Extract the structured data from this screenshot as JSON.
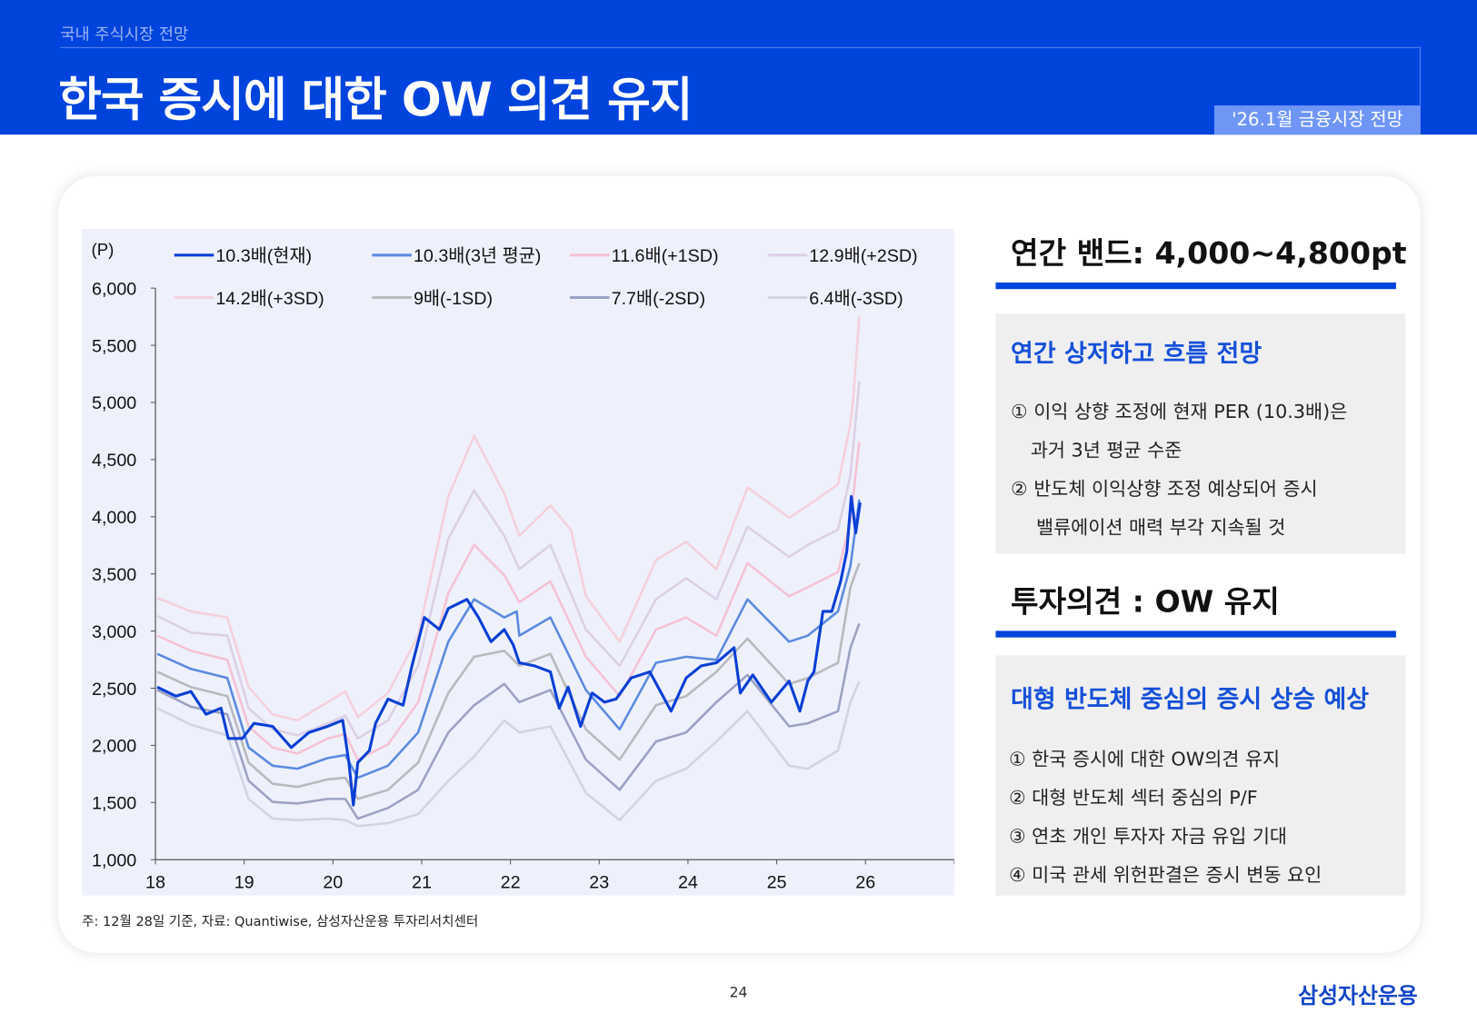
{
  "header": {
    "section": "국내 주식시장 전망",
    "title": "한국 증시에 대한 OW 의견 유지",
    "tag": "'26.1월 금융시장 전망"
  },
  "chart_data": {
    "type": "line",
    "unit_label": "(P)",
    "xlim": [
      18,
      27
    ],
    "ylim": [
      1000,
      6000
    ],
    "x_ticks": [
      "18",
      "19",
      "20",
      "21",
      "22",
      "23",
      "24",
      "25",
      "26"
    ],
    "y_ticks": [
      "1,000",
      "1,500",
      "2,000",
      "2,500",
      "3,000",
      "3,500",
      "4,000",
      "4,500",
      "5,000",
      "5,500",
      "6,000"
    ],
    "legend_position": "top",
    "grid": false,
    "series": [
      {
        "name": "10.3배(현재)",
        "color": "#0a3fd6",
        "width": 3,
        "points": [
          [
            18.02,
            2510
          ],
          [
            18.23,
            2431
          ],
          [
            18.4,
            2471
          ],
          [
            18.57,
            2272
          ],
          [
            18.74,
            2325
          ],
          [
            18.82,
            2060
          ],
          [
            18.98,
            2060
          ],
          [
            19.11,
            2193
          ],
          [
            19.32,
            2166
          ],
          [
            19.53,
            1981
          ],
          [
            19.73,
            2113
          ],
          [
            19.94,
            2166
          ],
          [
            20.11,
            2219
          ],
          [
            20.18,
            1849
          ],
          [
            20.23,
            1478
          ],
          [
            20.28,
            1849
          ],
          [
            20.41,
            1954
          ],
          [
            20.48,
            2193
          ],
          [
            20.62,
            2405
          ],
          [
            20.79,
            2352
          ],
          [
            20.89,
            2695
          ],
          [
            21.03,
            3119
          ],
          [
            21.2,
            3013
          ],
          [
            21.3,
            3198
          ],
          [
            21.51,
            3278
          ],
          [
            21.64,
            3119
          ],
          [
            21.78,
            2907
          ],
          [
            21.93,
            3013
          ],
          [
            22.03,
            2881
          ],
          [
            22.1,
            2722
          ],
          [
            22.27,
            2696
          ],
          [
            22.45,
            2643
          ],
          [
            22.55,
            2325
          ],
          [
            22.65,
            2510
          ],
          [
            22.79,
            2166
          ],
          [
            22.92,
            2458
          ],
          [
            23.06,
            2378
          ],
          [
            23.19,
            2405
          ],
          [
            23.36,
            2590
          ],
          [
            23.57,
            2643
          ],
          [
            23.81,
            2299
          ],
          [
            23.98,
            2590
          ],
          [
            24.15,
            2696
          ],
          [
            24.32,
            2722
          ],
          [
            24.52,
            2854
          ],
          [
            24.59,
            2458
          ],
          [
            24.73,
            2616
          ],
          [
            24.94,
            2378
          ],
          [
            25.14,
            2563
          ],
          [
            25.26,
            2299
          ],
          [
            25.35,
            2563
          ],
          [
            25.42,
            2643
          ],
          [
            25.52,
            3172
          ],
          [
            25.62,
            3172
          ],
          [
            25.72,
            3436
          ],
          [
            25.79,
            3701
          ],
          [
            25.84,
            4177
          ],
          [
            25.89,
            3860
          ],
          [
            25.94,
            4124
          ]
        ]
      },
      {
        "name": "10.3배(3년 평균)",
        "color": "#5b8ae0",
        "width": 2.5,
        "points": [
          [
            18.02,
            2801
          ],
          [
            18.4,
            2669
          ],
          [
            18.81,
            2590
          ],
          [
            19.05,
            1981
          ],
          [
            19.32,
            1822
          ],
          [
            19.6,
            1796
          ],
          [
            19.94,
            1889
          ],
          [
            20.14,
            1915
          ],
          [
            20.28,
            1717
          ],
          [
            20.62,
            1822
          ],
          [
            20.96,
            2113
          ],
          [
            21.3,
            2907
          ],
          [
            21.59,
            3278
          ],
          [
            21.93,
            3119
          ],
          [
            22.07,
            3172
          ],
          [
            22.1,
            2960
          ],
          [
            22.45,
            3119
          ],
          [
            22.85,
            2484
          ],
          [
            23.23,
            2140
          ],
          [
            23.64,
            2722
          ],
          [
            23.98,
            2775
          ],
          [
            24.32,
            2748
          ],
          [
            24.67,
            3278
          ],
          [
            25.14,
            2907
          ],
          [
            25.35,
            2960
          ],
          [
            25.69,
            3172
          ],
          [
            25.83,
            3569
          ],
          [
            25.93,
            4151
          ]
        ]
      },
      {
        "name": "11.6배(+1SD)",
        "color": "#f5c2d4",
        "width": 2.5,
        "points": [
          [
            18.02,
            2960
          ],
          [
            18.4,
            2828
          ],
          [
            18.81,
            2748
          ],
          [
            19.05,
            2166
          ],
          [
            19.32,
            1981
          ],
          [
            19.6,
            1928
          ],
          [
            19.94,
            2060
          ],
          [
            20.14,
            2100
          ],
          [
            20.28,
            1875
          ],
          [
            20.62,
            2008
          ],
          [
            20.96,
            2378
          ],
          [
            21.3,
            3331
          ],
          [
            21.59,
            3754
          ],
          [
            21.93,
            3489
          ],
          [
            22.1,
            3251
          ],
          [
            22.45,
            3436
          ],
          [
            22.85,
            2775
          ],
          [
            23.23,
            2431
          ],
          [
            23.64,
            3013
          ],
          [
            23.98,
            3119
          ],
          [
            24.32,
            2960
          ],
          [
            24.67,
            3595
          ],
          [
            25.14,
            3304
          ],
          [
            25.35,
            3383
          ],
          [
            25.69,
            3516
          ],
          [
            25.83,
            3966
          ],
          [
            25.93,
            4654
          ]
        ]
      },
      {
        "name": "12.9배(+2SD)",
        "color": "#dccfe6",
        "width": 2.5,
        "points": [
          [
            18.02,
            3132
          ],
          [
            18.4,
            2987
          ],
          [
            18.81,
            2960
          ],
          [
            19.05,
            2325
          ],
          [
            19.32,
            2140
          ],
          [
            19.6,
            2087
          ],
          [
            19.94,
            2193
          ],
          [
            20.14,
            2259
          ],
          [
            20.28,
            2060
          ],
          [
            20.62,
            2219
          ],
          [
            20.96,
            2695
          ],
          [
            21.3,
            3807
          ],
          [
            21.59,
            4230
          ],
          [
            21.93,
            3833
          ],
          [
            22.1,
            3542
          ],
          [
            22.45,
            3754
          ],
          [
            22.85,
            3013
          ],
          [
            23.23,
            2696
          ],
          [
            23.64,
            3278
          ],
          [
            23.98,
            3463
          ],
          [
            24.32,
            3278
          ],
          [
            24.67,
            3913
          ],
          [
            25.14,
            3648
          ],
          [
            25.35,
            3754
          ],
          [
            25.69,
            3886
          ],
          [
            25.83,
            4362
          ],
          [
            25.93,
            5180
          ]
        ]
      },
      {
        "name": "14.2배(+3SD)",
        "color": "#f5d0da",
        "width": 2.5,
        "points": [
          [
            18.02,
            3291
          ],
          [
            18.4,
            3172
          ],
          [
            18.81,
            3119
          ],
          [
            19.05,
            2510
          ],
          [
            19.32,
            2272
          ],
          [
            19.6,
            2219
          ],
          [
            19.94,
            2378
          ],
          [
            20.14,
            2471
          ],
          [
            20.28,
            2246
          ],
          [
            20.62,
            2458
          ],
          [
            20.96,
            2960
          ],
          [
            21.3,
            4177
          ],
          [
            21.59,
            4707
          ],
          [
            21.93,
            4204
          ],
          [
            22.1,
            3833
          ],
          [
            22.45,
            4098
          ],
          [
            22.68,
            3886
          ],
          [
            22.85,
            3304
          ],
          [
            23.23,
            2907
          ],
          [
            23.64,
            3622
          ],
          [
            23.98,
            3780
          ],
          [
            24.32,
            3542
          ],
          [
            24.67,
            4257
          ],
          [
            25.14,
            3992
          ],
          [
            25.35,
            4098
          ],
          [
            25.69,
            4283
          ],
          [
            25.83,
            4812
          ],
          [
            25.86,
            5024
          ],
          [
            25.93,
            5750
          ]
        ]
      },
      {
        "name": "9배(-1SD)",
        "color": "#b9b9bd",
        "width": 2.5,
        "points": [
          [
            18.02,
            2643
          ],
          [
            18.4,
            2510
          ],
          [
            18.81,
            2431
          ],
          [
            19.05,
            1849
          ],
          [
            19.32,
            1664
          ],
          [
            19.6,
            1637
          ],
          [
            19.94,
            1703
          ],
          [
            20.14,
            1717
          ],
          [
            20.28,
            1531
          ],
          [
            20.62,
            1611
          ],
          [
            20.96,
            1849
          ],
          [
            21.3,
            2458
          ],
          [
            21.59,
            2775
          ],
          [
            21.93,
            2828
          ],
          [
            22.1,
            2696
          ],
          [
            22.45,
            2801
          ],
          [
            22.85,
            2140
          ],
          [
            23.23,
            1875
          ],
          [
            23.64,
            2352
          ],
          [
            23.98,
            2431
          ],
          [
            24.32,
            2643
          ],
          [
            24.67,
            2934
          ],
          [
            25.14,
            2537
          ],
          [
            25.35,
            2590
          ],
          [
            25.69,
            2722
          ],
          [
            25.83,
            3383
          ],
          [
            25.93,
            3595
          ]
        ]
      },
      {
        "name": "7.7배(-2SD)",
        "color": "#9ca2c2",
        "width": 2.5,
        "points": [
          [
            18.02,
            2484
          ],
          [
            18.4,
            2338
          ],
          [
            18.81,
            2272
          ],
          [
            19.05,
            1690
          ],
          [
            19.32,
            1505
          ],
          [
            19.6,
            1492
          ],
          [
            19.94,
            1531
          ],
          [
            20.14,
            1531
          ],
          [
            20.28,
            1359
          ],
          [
            20.62,
            1452
          ],
          [
            20.96,
            1611
          ],
          [
            21.3,
            2113
          ],
          [
            21.59,
            2351
          ],
          [
            21.93,
            2537
          ],
          [
            22.1,
            2378
          ],
          [
            22.45,
            2484
          ],
          [
            22.85,
            1875
          ],
          [
            23.23,
            1611
          ],
          [
            23.64,
            2034
          ],
          [
            23.98,
            2113
          ],
          [
            24.32,
            2378
          ],
          [
            24.67,
            2616
          ],
          [
            25.14,
            2166
          ],
          [
            25.35,
            2193
          ],
          [
            25.69,
            2299
          ],
          [
            25.83,
            2854
          ],
          [
            25.93,
            3066
          ]
        ]
      },
      {
        "name": "6.4배(-3SD)",
        "color": "#d2d4e3",
        "width": 2.5,
        "points": [
          [
            18.02,
            2325
          ],
          [
            18.4,
            2180
          ],
          [
            18.81,
            2087
          ],
          [
            19.05,
            1531
          ],
          [
            19.32,
            1359
          ],
          [
            19.6,
            1346
          ],
          [
            19.94,
            1359
          ],
          [
            20.14,
            1346
          ],
          [
            20.28,
            1293
          ],
          [
            20.62,
            1320
          ],
          [
            20.96,
            1399
          ],
          [
            21.3,
            1690
          ],
          [
            21.59,
            1902
          ],
          [
            21.93,
            2219
          ],
          [
            22.1,
            2113
          ],
          [
            22.45,
            2166
          ],
          [
            22.85,
            1584
          ],
          [
            23.23,
            1346
          ],
          [
            23.64,
            1690
          ],
          [
            23.98,
            1796
          ],
          [
            24.32,
            2034
          ],
          [
            24.67,
            2299
          ],
          [
            25.14,
            1822
          ],
          [
            25.35,
            1796
          ],
          [
            25.69,
            1955
          ],
          [
            25.83,
            2378
          ],
          [
            25.93,
            2563
          ]
        ]
      }
    ]
  },
  "note": "주: 12월 28일 기준, 자료: Quantiwise, 삼성자산운용 투자리서치센터",
  "right": {
    "band_title": "연간 밴드: 4,000~4,800pt",
    "box1": {
      "heading": "연간 상저하고 흐름 전망",
      "items": [
        "① 이익 상향 조정에 현재 PER (10.3배)은",
        "과거 3년 평균 수준",
        "② 반도체 이익상향 조정 예상되어 증시",
        "밸류에이션 매력 부각 지속될 것"
      ]
    },
    "opinion_title": "투자의견 : OW 유지",
    "box2": {
      "heading": "대형 반도체 중심의 증시 상승 예상",
      "items": [
        "① 한국 증시에 대한 OW의견 유지",
        "② 대형 반도체 섹터 중심의 P/F",
        "③ 연초 개인 투자자 자금 유입 기대",
        "④ 미국 관세 위헌판결은 증시 변동 요인"
      ]
    }
  },
  "footer": {
    "page": "24",
    "logo": "삼성자산운용"
  },
  "colors": {
    "brand_blue": "#0044dd",
    "tag_blue": "#6f95f5",
    "heading_blue": "#1550d8",
    "chart_bg": "#eef1fc"
  }
}
